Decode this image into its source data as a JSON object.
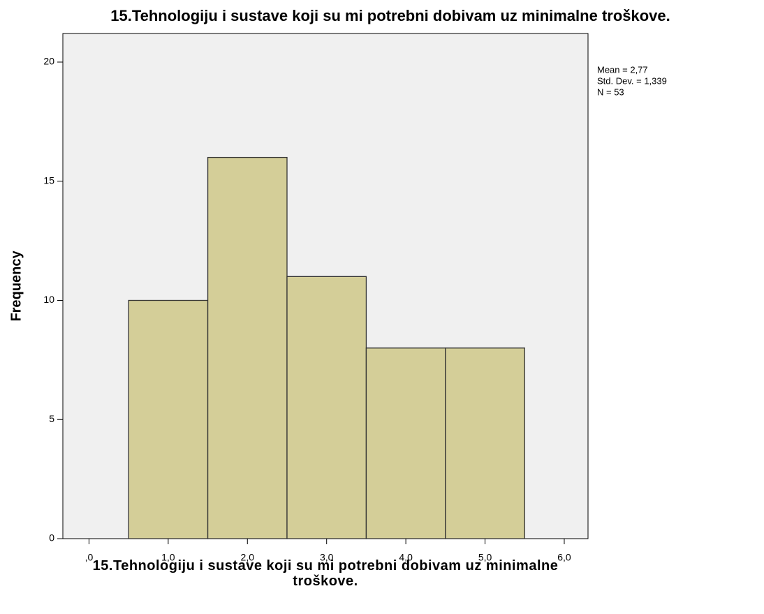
{
  "chart_data": {
    "type": "histogram",
    "title": "15.Tehnologiju i sustave koji su mi potrebni dobivam uz minimalne troškove.",
    "xlabel": "15.Tehnologiju i sustave koji su mi potrebni dobivam uz minimalne troškove.",
    "ylabel": "Frequency",
    "bins": [
      0.5,
      1.5,
      2.5,
      3.5,
      4.5,
      5.5
    ],
    "values": [
      10,
      16,
      11,
      8,
      8
    ],
    "color": "#d4ce98",
    "plot_background": "#f0f0f0",
    "xlim": [
      -0.33,
      6.3
    ],
    "ylim": [
      0,
      21.2
    ],
    "xticks": [
      {
        "value": 0,
        "label": ",0"
      },
      {
        "value": 1,
        "label": "1,0"
      },
      {
        "value": 2,
        "label": "2,0"
      },
      {
        "value": 3,
        "label": "3,0"
      },
      {
        "value": 4,
        "label": "4,0"
      },
      {
        "value": 5,
        "label": "5,0"
      },
      {
        "value": 6,
        "label": "6,0"
      }
    ],
    "yticks": [
      0,
      5,
      10,
      15,
      20
    ],
    "annotations": [
      "Mean = 2,77",
      "Std. Dev. = 1,339",
      "N = 53"
    ]
  }
}
